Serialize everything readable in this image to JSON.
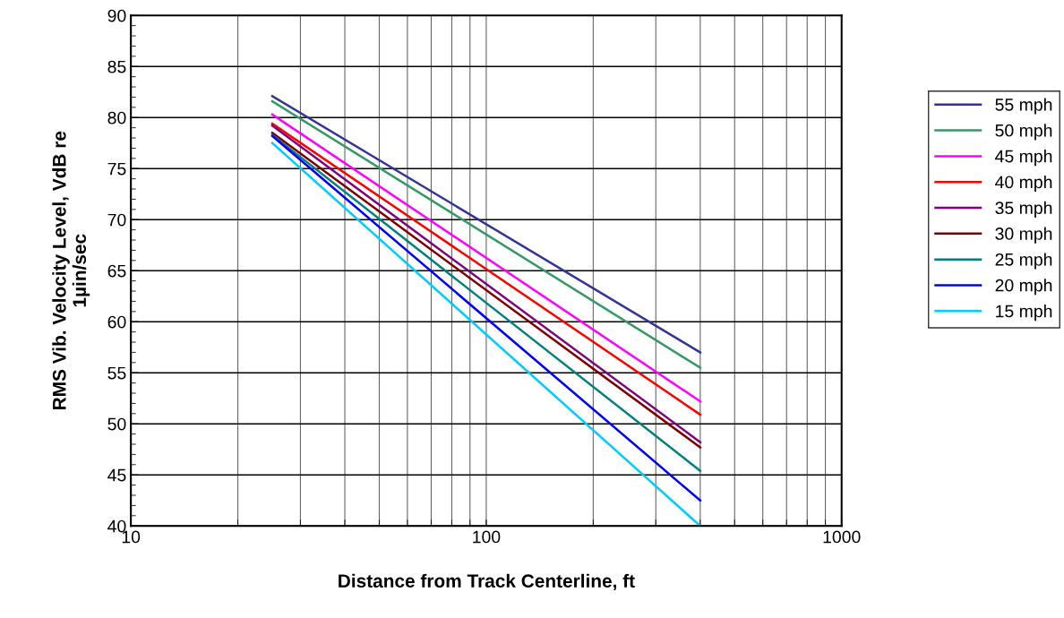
{
  "chart_data": {
    "type": "line",
    "xlabel": "Distance from Track Centerline, ft",
    "ylabel": "RMS Vib. Velocity Level, VdB re\n1µin/sec",
    "log": "x",
    "x": [
      25,
      400
    ],
    "xlim": [
      10,
      1000
    ],
    "xticks": [
      10,
      100,
      1000
    ],
    "ylim": [
      40,
      90
    ],
    "yticks": [
      40,
      45,
      50,
      55,
      60,
      65,
      70,
      75,
      80,
      85,
      90
    ],
    "grid": true,
    "legend": "right",
    "marker": "none",
    "line_style": "solid",
    "series": [
      {
        "name": "55 mph",
        "color": "#333399",
        "values": [
          82.1,
          57.0
        ]
      },
      {
        "name": "50 mph",
        "color": "#339966",
        "values": [
          81.6,
          55.5
        ]
      },
      {
        "name": "45 mph",
        "color": "#ff00ff",
        "values": [
          80.3,
          52.2
        ]
      },
      {
        "name": "40 mph",
        "color": "#ff0000",
        "values": [
          79.4,
          50.9
        ]
      },
      {
        "name": "35 mph",
        "color": "#800080",
        "values": [
          79.2,
          48.2
        ]
      },
      {
        "name": "30 mph",
        "color": "#800000",
        "values": [
          78.5,
          47.7
        ]
      },
      {
        "name": "25 mph",
        "color": "#008080",
        "values": [
          78.3,
          45.4
        ]
      },
      {
        "name": "20 mph",
        "color": "#0000ff",
        "values": [
          78.2,
          42.5
        ]
      },
      {
        "name": "15 mph",
        "color": "#00ccff",
        "values": [
          77.5,
          40.0
        ]
      }
    ]
  }
}
